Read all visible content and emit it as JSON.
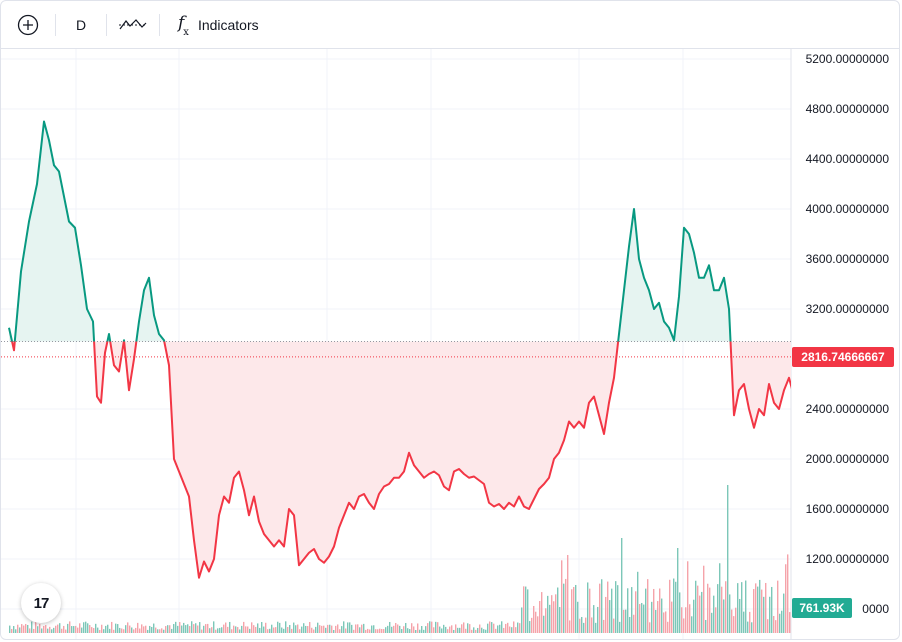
{
  "toolbar": {
    "add_icon": "plus-circle-icon",
    "interval": "D",
    "chart_type_icon": "baseline-chart-icon",
    "indicators_icon": "fx-icon",
    "indicators_label": "Indicators"
  },
  "colors": {
    "up": "#089981",
    "down": "#f23645",
    "up_fill": "#e6f4f1",
    "down_fill": "#fde8ea",
    "grid": "#f0f3fa",
    "volume_up": "#7cc7b8",
    "volume_down": "#f5a3aa"
  },
  "price_axis": {
    "labels": [
      "5200.00000000",
      "4800.00000000",
      "4400.00000000",
      "4000.00000000",
      "3600.00000000",
      "3200.00000000",
      "2400.00000000",
      "2000.00000000",
      "1600.00000000",
      "1200.00000000",
      "0000"
    ]
  },
  "badges": {
    "last_price": "2816.74666667",
    "volume": "761.93K"
  },
  "logo": {
    "text": "17"
  },
  "chart_data": {
    "type": "baseline-line",
    "baseline": 2940,
    "last_price": 2816.74666667,
    "ylim": [
      800,
      5330
    ],
    "series": [
      [
        0,
        3050
      ],
      [
        5,
        2870
      ],
      [
        12,
        3500
      ],
      [
        20,
        3900
      ],
      [
        28,
        4200
      ],
      [
        35,
        4700
      ],
      [
        40,
        4550
      ],
      [
        45,
        4350
      ],
      [
        50,
        4300
      ],
      [
        55,
        4100
      ],
      [
        60,
        3900
      ],
      [
        66,
        3850
      ],
      [
        72,
        3550
      ],
      [
        78,
        3200
      ],
      [
        84,
        3100
      ],
      [
        88,
        2500
      ],
      [
        92,
        2450
      ],
      [
        96,
        2850
      ],
      [
        100,
        3000
      ],
      [
        105,
        2750
      ],
      [
        110,
        2700
      ],
      [
        115,
        2950
      ],
      [
        120,
        2550
      ],
      [
        125,
        2800
      ],
      [
        130,
        3100
      ],
      [
        135,
        3350
      ],
      [
        140,
        3450
      ],
      [
        145,
        3150
      ],
      [
        150,
        3000
      ],
      [
        155,
        2950
      ],
      [
        160,
        2750
      ],
      [
        165,
        2000
      ],
      [
        170,
        1900
      ],
      [
        175,
        1800
      ],
      [
        180,
        1700
      ],
      [
        185,
        1350
      ],
      [
        190,
        1050
      ],
      [
        195,
        1180
      ],
      [
        200,
        1100
      ],
      [
        205,
        1200
      ],
      [
        210,
        1550
      ],
      [
        215,
        1700
      ],
      [
        220,
        1650
      ],
      [
        225,
        1850
      ],
      [
        230,
        1900
      ],
      [
        235,
        1750
      ],
      [
        240,
        1550
      ],
      [
        245,
        1700
      ],
      [
        250,
        1500
      ],
      [
        255,
        1400
      ],
      [
        260,
        1350
      ],
      [
        265,
        1300
      ],
      [
        270,
        1350
      ],
      [
        275,
        1300
      ],
      [
        280,
        1600
      ],
      [
        285,
        1550
      ],
      [
        290,
        1150
      ],
      [
        295,
        1200
      ],
      [
        300,
        1250
      ],
      [
        305,
        1280
      ],
      [
        310,
        1200
      ],
      [
        315,
        1170
      ],
      [
        320,
        1220
      ],
      [
        325,
        1300
      ],
      [
        330,
        1450
      ],
      [
        335,
        1550
      ],
      [
        340,
        1650
      ],
      [
        345,
        1600
      ],
      [
        350,
        1700
      ],
      [
        355,
        1720
      ],
      [
        360,
        1650
      ],
      [
        365,
        1600
      ],
      [
        370,
        1720
      ],
      [
        375,
        1780
      ],
      [
        380,
        1800
      ],
      [
        385,
        1850
      ],
      [
        390,
        1850
      ],
      [
        395,
        1900
      ],
      [
        400,
        2050
      ],
      [
        405,
        1950
      ],
      [
        410,
        1900
      ],
      [
        415,
        1850
      ],
      [
        420,
        1880
      ],
      [
        425,
        1900
      ],
      [
        430,
        1870
      ],
      [
        435,
        1780
      ],
      [
        440,
        1750
      ],
      [
        445,
        1900
      ],
      [
        450,
        1920
      ],
      [
        455,
        1880
      ],
      [
        460,
        1850
      ],
      [
        465,
        1860
      ],
      [
        470,
        1830
      ],
      [
        475,
        1800
      ],
      [
        480,
        1650
      ],
      [
        485,
        1620
      ],
      [
        490,
        1640
      ],
      [
        495,
        1600
      ],
      [
        500,
        1650
      ],
      [
        505,
        1620
      ],
      [
        510,
        1700
      ],
      [
        515,
        1620
      ],
      [
        520,
        1600
      ],
      [
        525,
        1680
      ],
      [
        530,
        1760
      ],
      [
        535,
        1800
      ],
      [
        540,
        1850
      ],
      [
        545,
        2000
      ],
      [
        550,
        2050
      ],
      [
        555,
        2150
      ],
      [
        560,
        2300
      ],
      [
        565,
        2250
      ],
      [
        570,
        2300
      ],
      [
        575,
        2250
      ],
      [
        580,
        2450
      ],
      [
        585,
        2500
      ],
      [
        590,
        2350
      ],
      [
        595,
        2200
      ],
      [
        600,
        2450
      ],
      [
        605,
        2650
      ],
      [
        610,
        3000
      ],
      [
        615,
        3350
      ],
      [
        620,
        3700
      ],
      [
        625,
        4000
      ],
      [
        630,
        3600
      ],
      [
        635,
        3450
      ],
      [
        640,
        3350
      ],
      [
        645,
        3200
      ],
      [
        650,
        3250
      ],
      [
        655,
        3100
      ],
      [
        660,
        3050
      ],
      [
        665,
        2950
      ],
      [
        670,
        3300
      ],
      [
        675,
        3850
      ],
      [
        680,
        3800
      ],
      [
        685,
        3650
      ],
      [
        690,
        3450
      ],
      [
        695,
        3450
      ],
      [
        700,
        3550
      ],
      [
        705,
        3350
      ],
      [
        710,
        3350
      ],
      [
        715,
        3450
      ],
      [
        720,
        3200
      ],
      [
        725,
        2350
      ],
      [
        730,
        2550
      ],
      [
        735,
        2600
      ],
      [
        740,
        2400
      ],
      [
        745,
        2250
      ],
      [
        750,
        2400
      ],
      [
        755,
        2350
      ],
      [
        760,
        2600
      ],
      [
        765,
        2450
      ],
      [
        770,
        2400
      ],
      [
        775,
        2550
      ],
      [
        780,
        2650
      ],
      [
        785,
        2500
      ],
      [
        789,
        2817
      ]
    ],
    "volume_note": "histogram of volume bars, spikes near right side"
  }
}
